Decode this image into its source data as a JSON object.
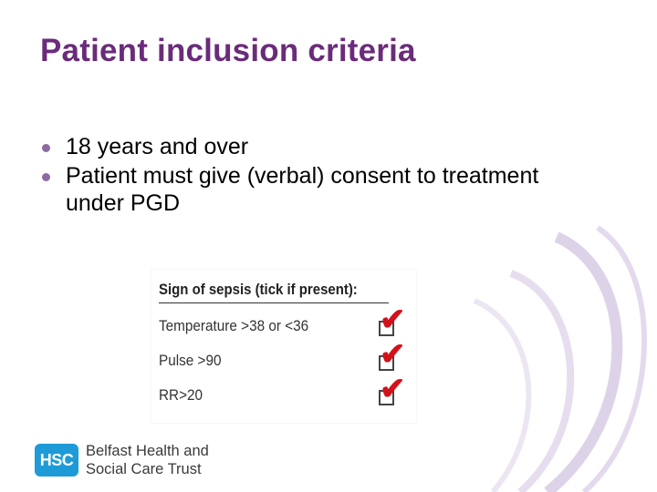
{
  "slide": {
    "title": "Patient inclusion criteria",
    "bullets": [
      "18 years and over",
      "Patient must give (verbal) consent to treatment under PGD"
    ]
  },
  "sepsis_panel": {
    "title": "Sign of sepsis (tick if present):",
    "items": [
      {
        "label": "Temperature >38 or <36",
        "checked": true
      },
      {
        "label": "Pulse >90",
        "checked": true
      },
      {
        "label": "RR>20",
        "checked": true
      }
    ],
    "tick_color": "#d3111a"
  },
  "logo": {
    "badge_text": "HSC",
    "org_line1": "Belfast Health and",
    "org_line2": "Social Care Trust",
    "badge_color": "#1e9bd7"
  },
  "colors": {
    "title": "#6a2c7a",
    "bullet": "#8e6aa2",
    "arc": "#ddd3e8"
  }
}
